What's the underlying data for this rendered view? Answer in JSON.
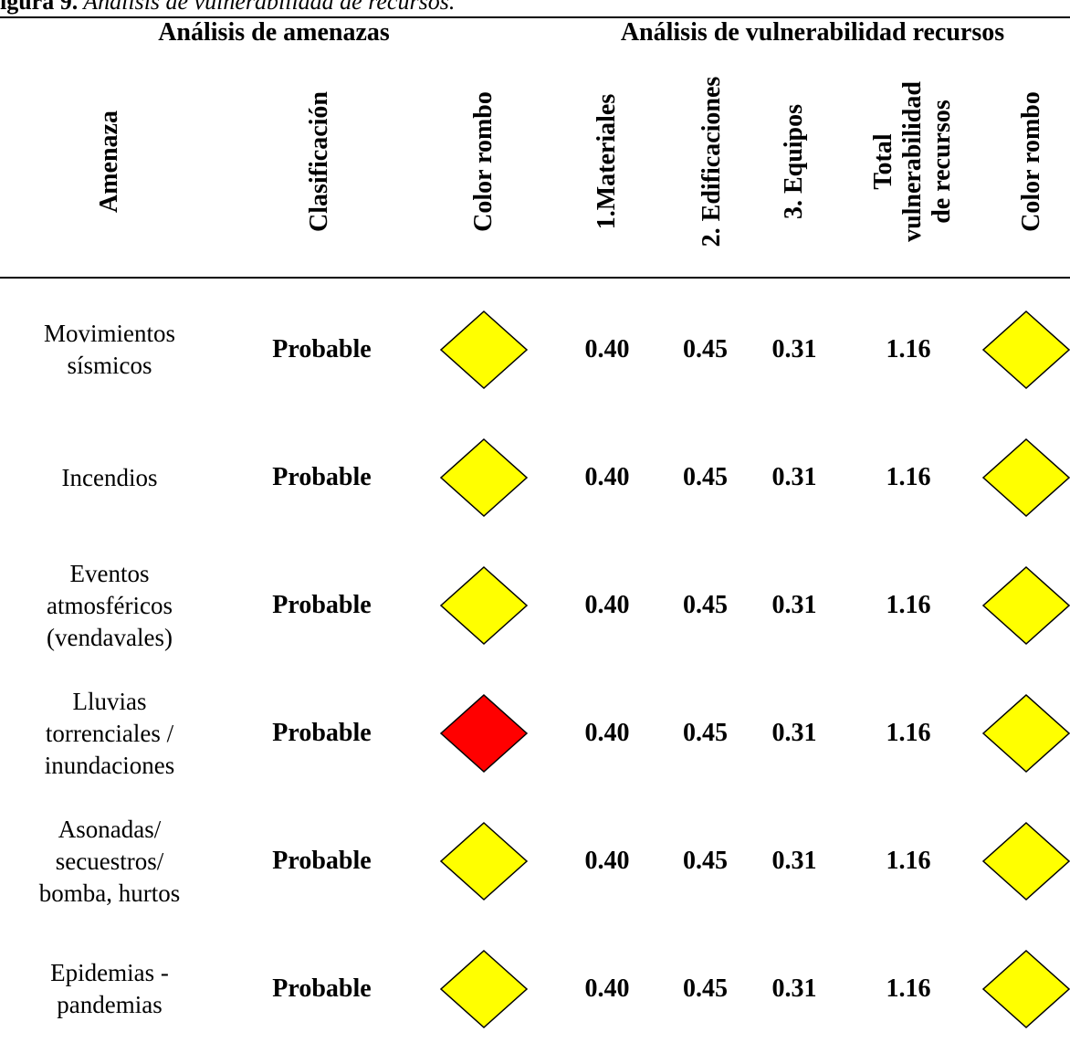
{
  "caption": {
    "label": "igura 9.",
    "title": " Análisis de vulnerabilidad de recursos."
  },
  "groups": {
    "threats": "Análisis de amenazas",
    "resources": "Análisis de vulnerabilidad recursos"
  },
  "columns": {
    "amenaza": "Amenaza",
    "clasificacion": "Clasificación",
    "color_rombo_1": "Color rombo",
    "materiales": "1.Materiales",
    "edificaciones": "2. Edificaciones",
    "equipos": "3. Equipos",
    "total_line1": "Total",
    "total_line2": "vulnerabilidad",
    "total_line3": "de recursos",
    "color_rombo_2": "Color rombo"
  },
  "colors": {
    "yellow": "#ffff00",
    "red": "#ff0000"
  },
  "rows": [
    {
      "amenaza_lines": [
        "Movimientos",
        "sísmicos",
        ""
      ],
      "clasificacion": "Probable",
      "color_threat": "yellow",
      "materiales": "0.40",
      "edificaciones": "0.45",
      "equipos": "0.31",
      "total": "1.16",
      "color_resources": "yellow"
    },
    {
      "amenaza_lines": [
        "Incendios",
        "",
        ""
      ],
      "clasificacion": "Probable",
      "color_threat": "yellow",
      "materiales": "0.40",
      "edificaciones": "0.45",
      "equipos": "0.31",
      "total": "1.16",
      "color_resources": "yellow"
    },
    {
      "amenaza_lines": [
        "Eventos",
        "atmosféricos",
        "(vendavales)"
      ],
      "clasificacion": "Probable",
      "color_threat": "yellow",
      "materiales": "0.40",
      "edificaciones": "0.45",
      "equipos": "0.31",
      "total": "1.16",
      "color_resources": "yellow"
    },
    {
      "amenaza_lines": [
        "Lluvias",
        "torrenciales /",
        "inundaciones"
      ],
      "clasificacion": "Probable",
      "color_threat": "red",
      "materiales": "0.40",
      "edificaciones": "0.45",
      "equipos": "0.31",
      "total": "1.16",
      "color_resources": "yellow"
    },
    {
      "amenaza_lines": [
        "Asonadas/",
        "secuestros/",
        "bomba, hurtos"
      ],
      "clasificacion": "Probable",
      "color_threat": "yellow",
      "materiales": "0.40",
      "edificaciones": "0.45",
      "equipos": "0.31",
      "total": "1.16",
      "color_resources": "yellow"
    },
    {
      "amenaza_lines": [
        "Epidemias -",
        "pandemias",
        ""
      ],
      "clasificacion": "Probable",
      "color_threat": "yellow",
      "materiales": "0.40",
      "edificaciones": "0.45",
      "equipos": "0.31",
      "total": "1.16",
      "color_resources": "yellow"
    }
  ]
}
